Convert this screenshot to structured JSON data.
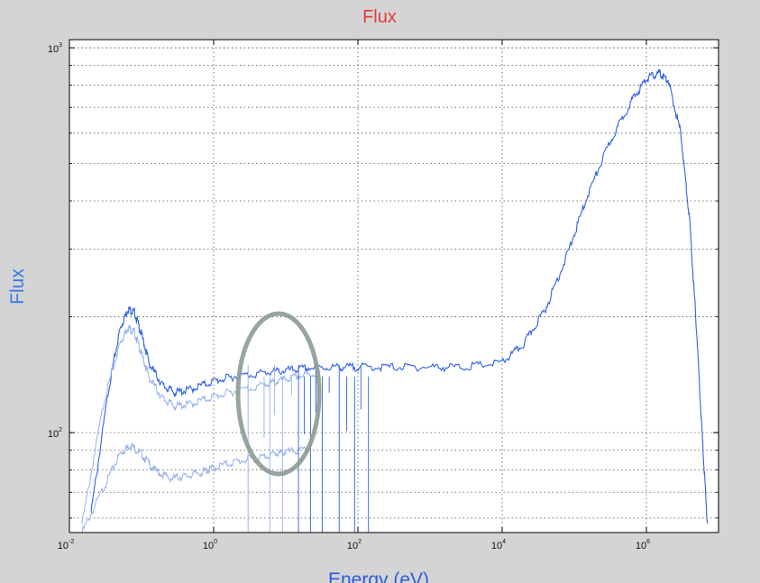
{
  "chart_data": {
    "type": "line",
    "title": "Flux",
    "xlabel": "Energy (eV)",
    "ylabel": "Flux",
    "x_scale": "log",
    "y_scale": "log",
    "xlim": [
      0.01,
      10000000
    ],
    "ylim": [
      55,
      1050
    ],
    "grid": true,
    "colors": {
      "title": "#e83a3a",
      "ylabel": "#3b78e8",
      "xlabel": "#2a5bd7",
      "series": "#2f62e6",
      "series_faint": "#93b0ee",
      "highlight": "#8d9b94",
      "plot_bg": "#ffffff",
      "page_bg": "#d4d4d4"
    },
    "x_ticks": [
      {
        "base": "10",
        "exp": "-2",
        "value": 0.01
      },
      {
        "base": "10",
        "exp": "0",
        "value": 1
      },
      {
        "base": "10",
        "exp": "2",
        "value": 100
      },
      {
        "base": "10",
        "exp": "4",
        "value": 10000
      },
      {
        "base": "10",
        "exp": "6",
        "value": 1000000
      }
    ],
    "y_ticks": [
      {
        "base": "10",
        "exp": "2",
        "value": 100
      },
      {
        "base": "10",
        "exp": "3",
        "value": 1000
      }
    ],
    "series": [
      {
        "x": [
          0.02,
          0.035,
          0.05,
          0.065,
          0.08,
          0.1,
          0.13,
          0.2,
          0.3,
          0.5,
          1,
          2,
          5,
          10,
          20,
          50,
          100,
          300,
          1000,
          3000,
          10000,
          20000,
          40000,
          80000,
          150000,
          300000,
          600000,
          1000000,
          1500000,
          2000000,
          3000000,
          4000000,
          5000000,
          6000000,
          7000000
        ],
        "y": [
          62,
          130,
          185,
          210,
          205,
          180,
          150,
          132,
          127,
          130,
          136,
          140,
          143,
          145,
          147,
          148,
          148,
          148,
          148,
          148,
          152,
          170,
          210,
          290,
          410,
          560,
          720,
          830,
          860,
          820,
          600,
          350,
          180,
          95,
          58
        ]
      },
      {
        "x": [
          0.015,
          0.03,
          0.05,
          0.065,
          0.08,
          0.1,
          0.13,
          0.2,
          0.3,
          0.5,
          1,
          2,
          5,
          8,
          15,
          30
        ],
        "y": [
          58,
          120,
          170,
          188,
          182,
          160,
          138,
          122,
          117,
          119,
          124,
          128,
          133,
          136,
          140,
          143
        ]
      },
      {
        "x": [
          0.015,
          0.03,
          0.05,
          0.07,
          0.1,
          0.15,
          0.25,
          0.4,
          0.7,
          1,
          2,
          4,
          7,
          10,
          20
        ],
        "y": [
          55,
          72,
          88,
          93,
          88,
          80,
          76,
          77,
          79,
          81,
          84,
          86,
          88,
          89,
          90
        ]
      }
    ]
  }
}
